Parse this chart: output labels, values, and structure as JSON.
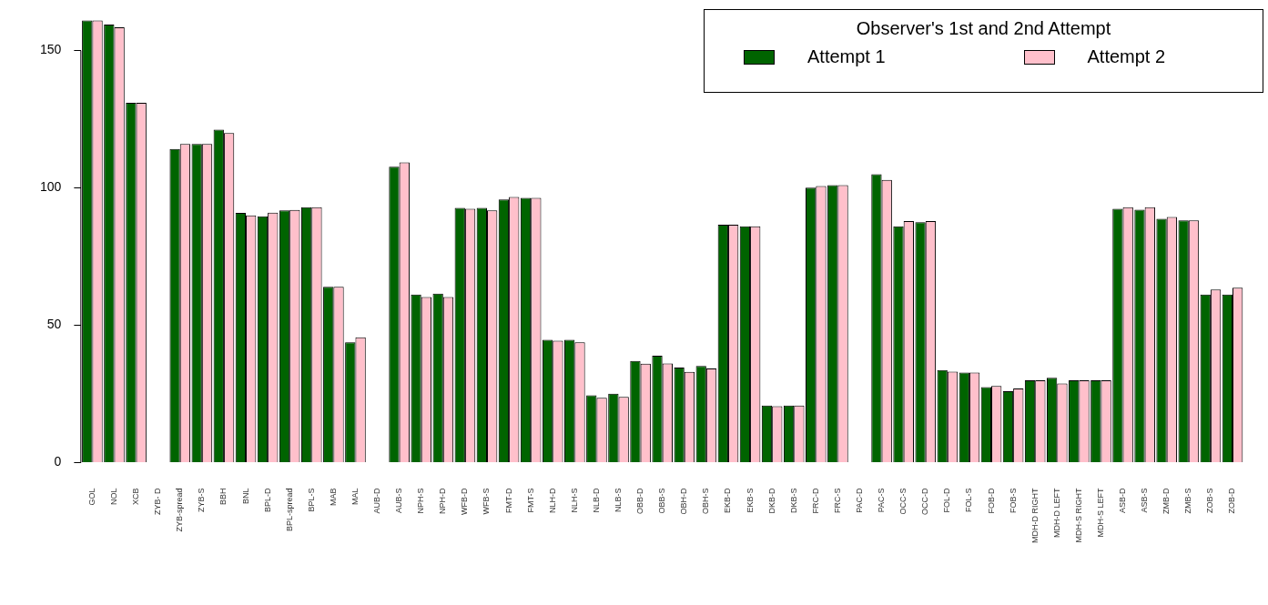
{
  "chart_data": {
    "type": "bar",
    "legend_title": "Observer's 1st and 2nd Attempt",
    "legend": "top right",
    "categories": [
      "GOL",
      "NOL",
      "XCB",
      "ZYB- D",
      "ZYB-spread",
      "ZYB-S",
      "BBH",
      "BNL",
      "BPL-D",
      "BPL-spread",
      "BPL-S",
      "MAB",
      "MAL",
      "AUB-D",
      "AUB-S",
      "NPH-S",
      "NPH-D",
      "WFB-D",
      "WFB-S",
      "FMT-D",
      "FMT-S",
      "NLH-D",
      "NLH-S",
      "NLB-D",
      "NLB-S",
      "OBB-D",
      "OBB-S",
      "OBH-D",
      "OBH-S",
      "EKB-D",
      "EKB-S",
      "DKB-D",
      "DKB-S",
      "FRC-D",
      "FRC-S",
      "PAC-D",
      "PAC-S",
      "OCC-S",
      "OCC-D",
      "FOL-D",
      "FOL-S",
      "FOB-D",
      "FOB-S",
      "MDH-D RIGHT",
      "MDH-D LEFT",
      "MDH-S RIGHT",
      "MDH-S LEFT",
      "ASB-D",
      "ASB-S",
      "ZMB-D",
      "ZMB-S",
      "ZOB-S",
      "ZOB-D"
    ],
    "series": [
      {
        "name": "Attempt 1",
        "color": "#006400",
        "values": [
          161,
          159.5,
          131,
          null,
          114.2,
          116,
          121.2,
          90.9,
          89.7,
          91.8,
          93,
          64,
          43.8,
          null,
          107.7,
          61.2,
          61.5,
          92.7,
          92.7,
          95.8,
          96.4,
          44.7,
          44.7,
          24.5,
          25.1,
          37,
          38.9,
          34.6,
          35.2,
          86.6,
          86,
          20.8,
          20.8,
          100.1,
          101,
          null,
          105,
          86,
          87.5,
          33.7,
          32.8,
          27.5,
          26,
          30,
          30.9,
          30,
          30,
          92.4,
          92.1,
          88.8,
          88.2,
          61.2,
          61.2
        ]
      },
      {
        "name": "Attempt 2",
        "color": "#ffc0cb",
        "values": [
          161,
          158.5,
          131,
          null,
          116,
          116,
          120,
          90,
          91,
          92,
          93,
          64,
          45.6,
          null,
          109.3,
          60.3,
          60.3,
          92.4,
          91.8,
          96.7,
          96.4,
          44.4,
          43.8,
          23.6,
          23.9,
          36,
          36.1,
          33,
          34.3,
          86.6,
          86,
          20.5,
          20.8,
          100.7,
          101,
          null,
          102.9,
          87.9,
          87.9,
          33.1,
          32.8,
          27.9,
          27,
          30,
          28.8,
          30,
          30,
          93,
          93,
          89.4,
          88.2,
          63,
          63.7
        ]
      }
    ],
    "ylim": [
      0,
      161
    ],
    "yticks": [
      0,
      50,
      100,
      150
    ]
  }
}
